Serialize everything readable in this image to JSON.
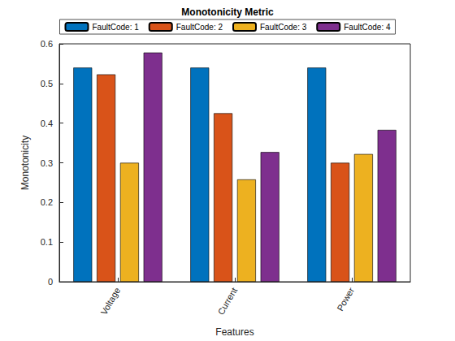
{
  "chart_data": {
    "type": "bar",
    "title": "Monotonicity Metric",
    "x_label": "Features",
    "y_label": "Monotonicity",
    "categories": [
      "Voltage",
      "Current",
      "Power"
    ],
    "series": [
      {
        "name": "FaultCode: 1",
        "color": "#0072BD",
        "values": [
          0.54,
          0.54,
          0.54
        ]
      },
      {
        "name": "FaultCode: 2",
        "color": "#D95319",
        "values": [
          0.523,
          0.425,
          0.3
        ]
      },
      {
        "name": "FaultCode: 3",
        "color": "#EDB120",
        "values": [
          0.3,
          0.258,
          0.322
        ]
      },
      {
        "name": "FaultCode: 4",
        "color": "#7E2F8E",
        "values": [
          0.578,
          0.327,
          0.383
        ]
      }
    ],
    "ylim": [
      0,
      0.6
    ],
    "yticks": [
      0,
      0.1,
      0.2,
      0.3,
      0.4,
      0.5,
      0.6
    ],
    "grid": false,
    "legend": "top"
  }
}
